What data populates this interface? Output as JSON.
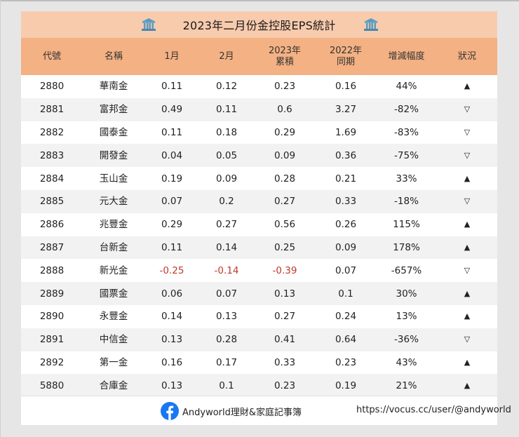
{
  "title": "2023年二月份金控股EPS統計",
  "icons": {
    "title_left": "bank-icon",
    "title_right": "bank-icon",
    "footer": "facebook-icon"
  },
  "colors": {
    "title_bg": "#f8cbad",
    "header_bg": "#f4b183",
    "negative": "#c0392b",
    "row_alt": "#f2f2f2"
  },
  "columns": [
    {
      "line1": "代號",
      "line2": ""
    },
    {
      "line1": "名稱",
      "line2": ""
    },
    {
      "line1": "1月",
      "line2": ""
    },
    {
      "line1": "2月",
      "line2": ""
    },
    {
      "line1": "2023年",
      "line2": "累積"
    },
    {
      "line1": "2022年",
      "line2": "同期"
    },
    {
      "line1": "增減幅度",
      "line2": ""
    },
    {
      "line1": "狀況",
      "line2": ""
    }
  ],
  "rows": [
    {
      "code": "2880",
      "name": "華南金",
      "jan": "0.11",
      "feb": "0.12",
      "ytd2023": "0.23",
      "same2022": "0.16",
      "change": "44%",
      "status": "▲"
    },
    {
      "code": "2881",
      "name": "富邦金",
      "jan": "0.49",
      "feb": "0.11",
      "ytd2023": "0.6",
      "same2022": "3.27",
      "change": "-82%",
      "status": "▽"
    },
    {
      "code": "2882",
      "name": "國泰金",
      "jan": "0.11",
      "feb": "0.18",
      "ytd2023": "0.29",
      "same2022": "1.69",
      "change": "-83%",
      "status": "▽"
    },
    {
      "code": "2883",
      "name": "開發金",
      "jan": "0.04",
      "feb": "0.05",
      "ytd2023": "0.09",
      "same2022": "0.36",
      "change": "-75%",
      "status": "▽"
    },
    {
      "code": "2884",
      "name": "玉山金",
      "jan": "0.19",
      "feb": "0.09",
      "ytd2023": "0.28",
      "same2022": "0.21",
      "change": "33%",
      "status": "▲"
    },
    {
      "code": "2885",
      "name": "元大金",
      "jan": "0.07",
      "feb": "0.2",
      "ytd2023": "0.27",
      "same2022": "0.33",
      "change": "-18%",
      "status": "▽"
    },
    {
      "code": "2886",
      "name": "兆豐金",
      "jan": "0.29",
      "feb": "0.27",
      "ytd2023": "0.56",
      "same2022": "0.26",
      "change": "115%",
      "status": "▲"
    },
    {
      "code": "2887",
      "name": "台新金",
      "jan": "0.11",
      "feb": "0.14",
      "ytd2023": "0.25",
      "same2022": "0.09",
      "change": "178%",
      "status": "▲"
    },
    {
      "code": "2888",
      "name": "新光金",
      "jan": "-0.25",
      "feb": "-0.14",
      "ytd2023": "-0.39",
      "same2022": "0.07",
      "change": "-657%",
      "status": "▽"
    },
    {
      "code": "2889",
      "name": "國票金",
      "jan": "0.06",
      "feb": "0.07",
      "ytd2023": "0.13",
      "same2022": "0.1",
      "change": "30%",
      "status": "▲"
    },
    {
      "code": "2890",
      "name": "永豐金",
      "jan": "0.14",
      "feb": "0.13",
      "ytd2023": "0.27",
      "same2022": "0.24",
      "change": "13%",
      "status": "▲"
    },
    {
      "code": "2891",
      "name": "中信金",
      "jan": "0.13",
      "feb": "0.28",
      "ytd2023": "0.41",
      "same2022": "0.64",
      "change": "-36%",
      "status": "▽"
    },
    {
      "code": "2892",
      "name": "第一金",
      "jan": "0.16",
      "feb": "0.17",
      "ytd2023": "0.33",
      "same2022": "0.23",
      "change": "43%",
      "status": "▲"
    },
    {
      "code": "5880",
      "name": "合庫金",
      "jan": "0.13",
      "feb": "0.1",
      "ytd2023": "0.23",
      "same2022": "0.19",
      "change": "21%",
      "status": "▲"
    }
  ],
  "footer": {
    "brand": "Andyworld理財&家庭記事簿",
    "url": "https://vocus.cc/user/@andyworld"
  }
}
